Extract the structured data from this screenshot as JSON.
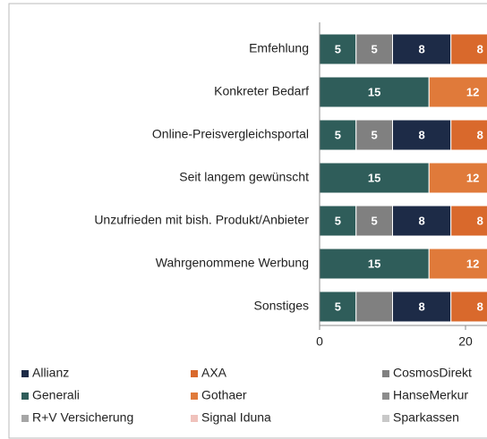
{
  "chart_data": {
    "type": "stacked-barh",
    "categories": [
      "Emfehlung",
      "Konkreter Bedarf",
      "Online-Preisvergleichsportal",
      "Seit langem gewünscht",
      "Unzufrieden mit bish. Produkt/Anbieter",
      "Wahrgenommene Werbung",
      "Sonstiges"
    ],
    "series": [
      {
        "name": "Allianz",
        "color": "#1d2b47",
        "values": [
          8,
          null,
          8,
          null,
          8,
          null,
          8
        ]
      },
      {
        "name": "AXA",
        "color": "#d9692c",
        "values": [
          8,
          null,
          8,
          null,
          8,
          null,
          8
        ]
      },
      {
        "name": "CosmosDirekt",
        "color": "#808080",
        "values": [
          5,
          null,
          5,
          null,
          5,
          null,
          5
        ],
        "value_labels": [
          "5",
          null,
          "5",
          null,
          "5",
          null,
          null
        ]
      },
      {
        "name": "Generali",
        "color": "#2f5d5a",
        "values": [
          5,
          15,
          5,
          15,
          5,
          15,
          5
        ]
      },
      {
        "name": "Gothaer",
        "color": "#e07a3a",
        "values": [
          null,
          12,
          null,
          12,
          null,
          12,
          null
        ]
      },
      {
        "name": "HanseMerkur",
        "color": "#8c8c8c",
        "values": [
          null,
          null,
          null,
          null,
          null,
          null,
          null
        ]
      },
      {
        "name": "R+V Versicherung",
        "color": "#a6a6a6",
        "values": [
          null,
          null,
          null,
          null,
          null,
          null,
          null
        ]
      },
      {
        "name": "Signal Iduna",
        "color": "#f0c2bc",
        "values": [
          null,
          null,
          null,
          null,
          null,
          null,
          null
        ]
      },
      {
        "name": "Sparkassen",
        "color": "#c8c8c8",
        "values": [
          null,
          null,
          null,
          null,
          null,
          null,
          null
        ]
      }
    ],
    "xlim": [
      0,
      40
    ],
    "xticks": [
      0,
      20
    ],
    "grid": false
  }
}
